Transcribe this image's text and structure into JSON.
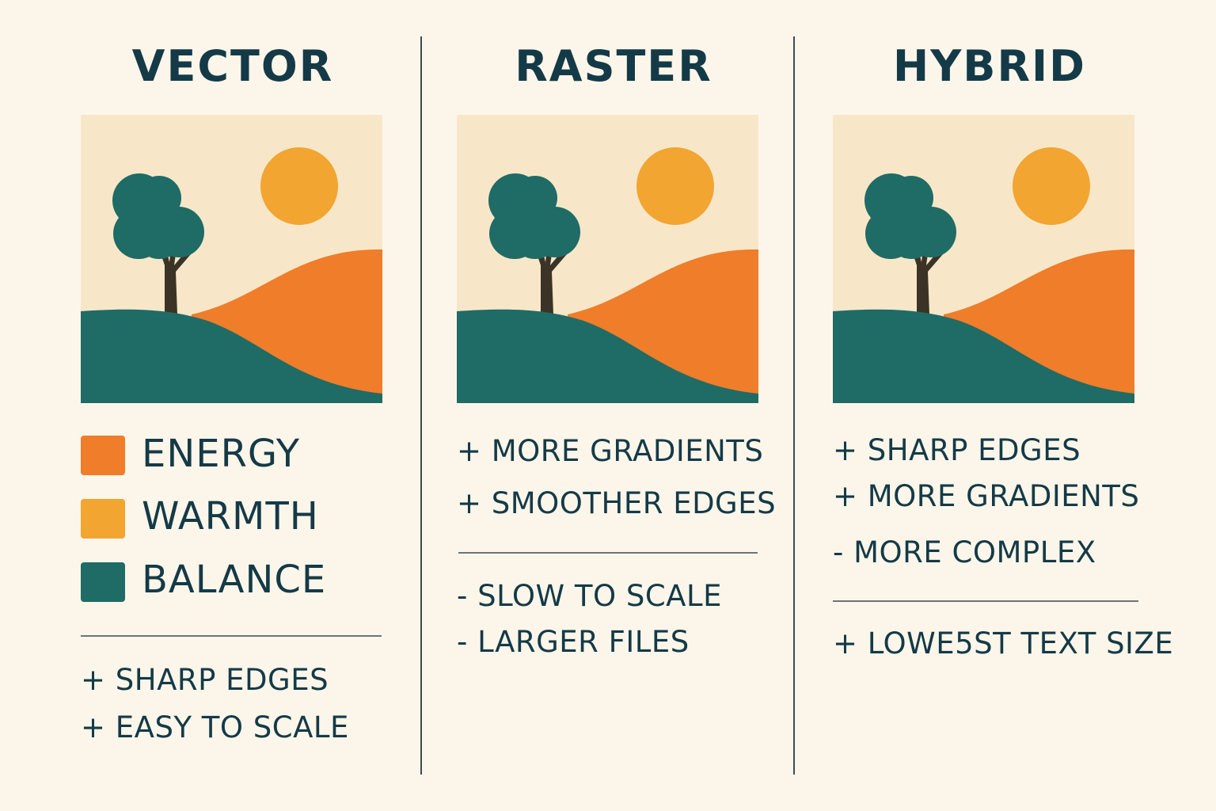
{
  "colors": {
    "background": "#fcf6ea",
    "sky": "#f7e7c8",
    "sun": "#f2a531",
    "orange_hill": "#ef7d2a",
    "teal": "#1f6b66",
    "trunk": "#3b3426",
    "text": "#143a47"
  },
  "columns": [
    {
      "title": "VECTOR",
      "scene": {
        "icons": [
          "tree-icon",
          "sun-icon",
          "hill-icon"
        ]
      },
      "legend": [
        {
          "label": "ENERGY",
          "color": "#ef7d2a"
        },
        {
          "label": "WARMTH",
          "color": "#f2a531"
        },
        {
          "label": "BALANCE",
          "color": "#1f6b66"
        }
      ],
      "points": [
        "+ SHARP EDGES",
        "+ EASY TO SCALE"
      ]
    },
    {
      "title": "RASTER",
      "scene": {
        "icons": [
          "tree-icon",
          "sun-icon",
          "hill-icon"
        ]
      },
      "pros": [
        "+ MORE GRADIENTS",
        "+ SMOOTHER EDGES"
      ],
      "cons": [
        "- SLOW TO SCALE",
        "- LARGER FILES"
      ]
    },
    {
      "title": "HYBRID",
      "scene": {
        "icons": [
          "tree-icon",
          "sun-icon",
          "hill-icon"
        ]
      },
      "pros": [
        "+ SHARP EDGES",
        "+ MORE GRADIENTS"
      ],
      "cons": [
        "- MORE COMPLEX"
      ],
      "extra": [
        "+ LOWE5ST TEXT SIZE"
      ]
    }
  ]
}
